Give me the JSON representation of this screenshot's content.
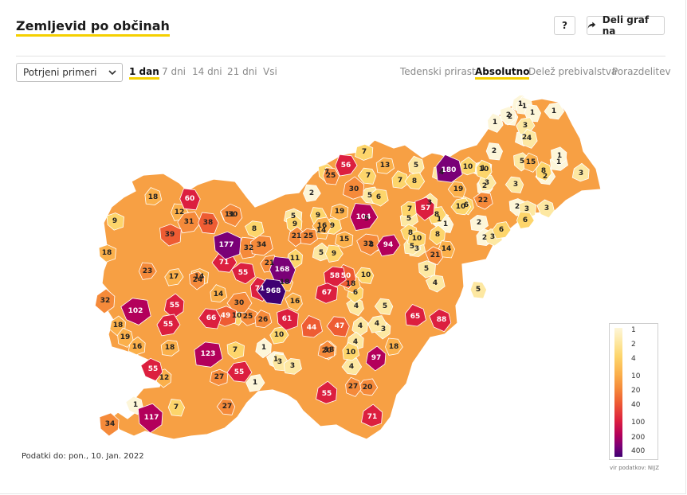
{
  "title": "Zemljevid po občinah",
  "header": {
    "help_label": "?",
    "share_label": "Deli graf na"
  },
  "controls": {
    "select_value": "Potrjeni primeri",
    "periods": [
      {
        "label": "1 dan",
        "active": true
      },
      {
        "label": "7 dni",
        "active": false
      },
      {
        "label": "14 dni",
        "active": false
      },
      {
        "label": "21 dni",
        "active": false
      },
      {
        "label": "Vsi",
        "active": false
      }
    ],
    "modes": [
      {
        "label": "Tedenski prirast",
        "active": false
      },
      {
        "label": "Absolutno",
        "active": true
      },
      {
        "label": "Delež prebivalstva",
        "active": false
      },
      {
        "label": "Porazdelitev",
        "active": false
      }
    ]
  },
  "footer": {
    "data_date": "Podatki do: pon., 10. Jan. 2022"
  },
  "legend": {
    "ticks": [
      "1",
      "2",
      "4",
      "10",
      "20",
      "40",
      "100",
      "200",
      "400"
    ],
    "source": "vir podatkov: NIJZ",
    "colors": [
      "#fdf6d9",
      "#fde8a2",
      "#fdd56b",
      "#fbb04b",
      "#f58a3a",
      "#ee5c33",
      "#dc1f3f",
      "#b3005b",
      "#7a0077",
      "#3f0072"
    ]
  },
  "municipality_values": [
    {
      "value": 968
    },
    {
      "value": 180
    },
    {
      "value": 177
    },
    {
      "value": 168
    },
    {
      "value": 123
    },
    {
      "value": 117
    },
    {
      "value": 104
    },
    {
      "value": 102
    },
    {
      "value": 97
    },
    {
      "value": 94
    },
    {
      "value": 88
    },
    {
      "value": 71
    },
    {
      "value": 71
    },
    {
      "value": 71
    },
    {
      "value": 67
    },
    {
      "value": 66
    },
    {
      "value": 65
    },
    {
      "value": 61
    },
    {
      "value": 60
    },
    {
      "value": 58
    },
    {
      "value": 57
    },
    {
      "value": 56
    },
    {
      "value": 55
    },
    {
      "value": 55
    },
    {
      "value": 55
    },
    {
      "value": 55
    },
    {
      "value": 55
    },
    {
      "value": 55
    },
    {
      "value": 50
    },
    {
      "value": 49
    },
    {
      "value": 47
    },
    {
      "value": 44
    },
    {
      "value": 39
    },
    {
      "value": 38
    },
    {
      "value": 34
    },
    {
      "value": 34
    },
    {
      "value": 32
    },
    {
      "value": 32
    },
    {
      "value": 32
    },
    {
      "value": 31
    },
    {
      "value": 30
    },
    {
      "value": 30
    },
    {
      "value": 30
    },
    {
      "value": 27
    },
    {
      "value": 27
    },
    {
      "value": 27
    },
    {
      "value": 26
    },
    {
      "value": 25
    },
    {
      "value": 25
    },
    {
      "value": 25
    },
    {
      "value": 24
    },
    {
      "value": 23
    },
    {
      "value": 22
    },
    {
      "value": 21
    },
    {
      "value": 21
    },
    {
      "value": 21
    },
    {
      "value": 20
    },
    {
      "value": 20
    },
    {
      "value": 19
    },
    {
      "value": 19
    },
    {
      "value": 19
    },
    {
      "value": 18
    },
    {
      "value": 18
    },
    {
      "value": 18
    },
    {
      "value": 18
    },
    {
      "value": 18
    },
    {
      "value": 18
    },
    {
      "value": 18
    },
    {
      "value": 18
    },
    {
      "value": 17
    },
    {
      "value": 16
    },
    {
      "value": 16
    },
    {
      "value": 16
    },
    {
      "value": 15
    },
    {
      "value": 15
    },
    {
      "value": 14
    },
    {
      "value": 14
    },
    {
      "value": 14
    },
    {
      "value": 14
    },
    {
      "value": 13
    },
    {
      "value": 12
    },
    {
      "value": 12
    },
    {
      "value": 11
    },
    {
      "value": 11
    },
    {
      "value": 10
    },
    {
      "value": 10
    },
    {
      "value": 10
    },
    {
      "value": 10
    },
    {
      "value": 10
    },
    {
      "value": 10
    },
    {
      "value": 10
    },
    {
      "value": 10
    },
    {
      "value": 9
    },
    {
      "value": 9
    },
    {
      "value": 9
    },
    {
      "value": 9
    },
    {
      "value": 9
    },
    {
      "value": 8
    },
    {
      "value": 8
    },
    {
      "value": 8
    },
    {
      "value": 8
    },
    {
      "value": 8
    },
    {
      "value": 8
    },
    {
      "value": 8
    },
    {
      "value": 7
    },
    {
      "value": 7
    },
    {
      "value": 7
    },
    {
      "value": 7
    },
    {
      "value": 7
    },
    {
      "value": 7
    },
    {
      "value": 7
    },
    {
      "value": 6
    },
    {
      "value": 6
    },
    {
      "value": 6
    },
    {
      "value": 6
    },
    {
      "value": 6
    },
    {
      "value": 5
    },
    {
      "value": 5
    },
    {
      "value": 5
    },
    {
      "value": 5
    },
    {
      "value": 5
    },
    {
      "value": 5
    },
    {
      "value": 5
    },
    {
      "value": 5
    },
    {
      "value": 5
    },
    {
      "value": 5
    },
    {
      "value": 5
    },
    {
      "value": 4
    },
    {
      "value": 4
    },
    {
      "value": 4
    },
    {
      "value": 4
    },
    {
      "value": 4
    },
    {
      "value": 4
    },
    {
      "value": 4
    },
    {
      "value": 4
    },
    {
      "value": 3
    },
    {
      "value": 3
    },
    {
      "value": 3
    },
    {
      "value": 3
    },
    {
      "value": 3
    },
    {
      "value": 3
    },
    {
      "value": 3
    },
    {
      "value": 3
    },
    {
      "value": 3
    },
    {
      "value": 3
    },
    {
      "value": 3
    },
    {
      "value": 3
    },
    {
      "value": 2
    },
    {
      "value": 2
    },
    {
      "value": 2
    },
    {
      "value": 2
    },
    {
      "value": 2
    },
    {
      "value": 2
    },
    {
      "value": 2
    },
    {
      "value": 2
    },
    {
      "value": 2
    },
    {
      "value": 2
    },
    {
      "value": 1
    },
    {
      "value": 1
    },
    {
      "value": 1
    },
    {
      "value": 1
    },
    {
      "value": 1
    },
    {
      "value": 1
    },
    {
      "value": 1
    },
    {
      "value": 1
    },
    {
      "value": 1
    },
    {
      "value": 1
    },
    {
      "value": 1
    },
    {
      "value": 1
    },
    {
      "value": 1
    },
    {
      "value": 1
    }
  ]
}
